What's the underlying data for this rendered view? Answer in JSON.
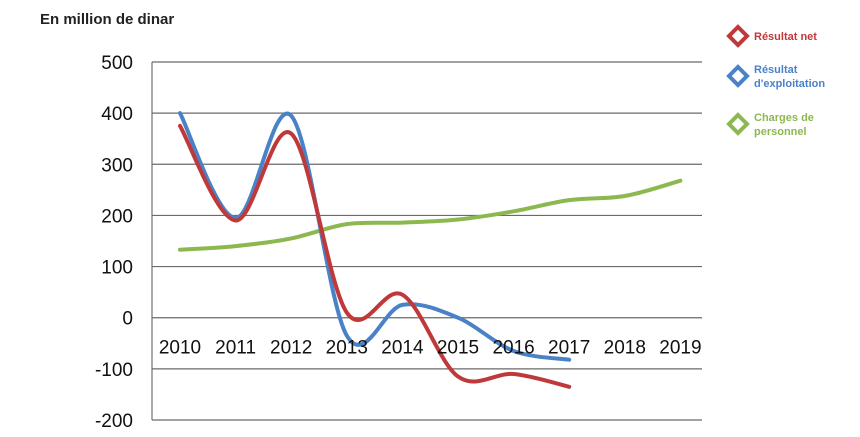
{
  "chart_data": {
    "type": "line",
    "title": "",
    "unit_label": "En million de dinar",
    "x": [
      "2010",
      "2011",
      "2012",
      "2013",
      "2014",
      "2015",
      "2016",
      "2017",
      "2018",
      "2019"
    ],
    "ylim": [
      -200,
      500
    ],
    "yticks": [
      500,
      400,
      300,
      200,
      100,
      0,
      -100,
      -200
    ],
    "grid": true,
    "legend_position": "right",
    "series": [
      {
        "name": "Résultat net",
        "color": "#c0393a",
        "legend_lines": [
          "Résultat net"
        ],
        "values": [
          375,
          190,
          360,
          10,
          45,
          -115,
          -110,
          -135,
          null,
          null
        ]
      },
      {
        "name": "Résultat d'exploitation",
        "color": "#4a82c8",
        "legend_lines": [
          "Résultat",
          "d'exploitation"
        ],
        "values": [
          400,
          195,
          395,
          -35,
          25,
          0,
          -65,
          -82,
          null,
          null
        ]
      },
      {
        "name": "Charges de personnel",
        "color": "#8db850",
        "legend_lines": [
          "Charges de",
          "personnel"
        ],
        "values": [
          133,
          140,
          155,
          183,
          186,
          192,
          208,
          230,
          238,
          268
        ]
      }
    ]
  }
}
